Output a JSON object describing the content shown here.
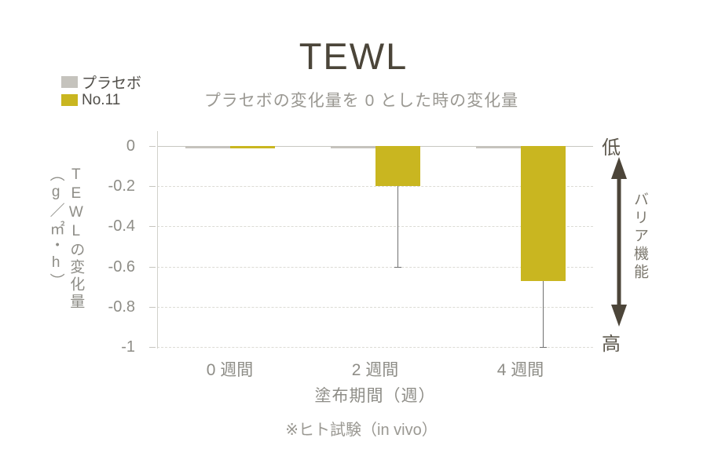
{
  "title": "TEWL",
  "subtitle": "プラセボの変化量を 0 とした時の変化量",
  "legend": {
    "items": [
      {
        "label": "プラセボ",
        "color": "#c5c3bd"
      },
      {
        "label": "No.11",
        "color": "#c9b620"
      }
    ]
  },
  "chart_data": {
    "type": "bar",
    "title": "TEWL",
    "subtitle": "プラセボの変化量を 0 とした時の変化量",
    "categories": [
      "0 週間",
      "2 週間",
      "4 週間"
    ],
    "series": [
      {
        "name": "プラセボ",
        "color": "#c5c3bd",
        "values": [
          -0.01,
          -0.01,
          -0.01
        ]
      },
      {
        "name": "No.11",
        "color": "#c9b620",
        "values": [
          -0.01,
          -0.2,
          -0.67
        ],
        "error_minus": [
          0,
          0.4,
          0.33
        ]
      }
    ],
    "yticks": [
      0,
      -0.2,
      -0.4,
      -0.6,
      -0.8,
      -1
    ],
    "ylim": [
      -1,
      0
    ],
    "ylabel_main": "TEWLの変化量",
    "ylabel_unit": "（g／㎡・h）",
    "xlabel": "塗布期間（週）",
    "grid": "horizontal-dashed",
    "legend_position": "top-left"
  },
  "footnote": "※ヒト試験（in vivo）",
  "right_annotation": {
    "top_label": "低",
    "axis_label": "バリア機能",
    "bottom_label": "高",
    "arrow_color": "#4c4539"
  }
}
